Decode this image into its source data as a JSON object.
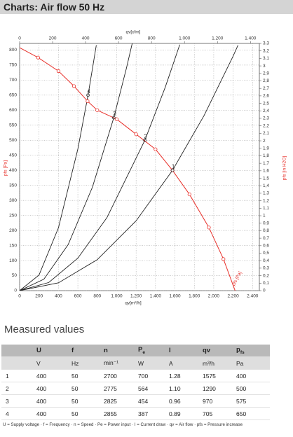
{
  "header": {
    "title": "Charts: Air flow 50 Hz"
  },
  "chart_data": {
    "type": "line",
    "xlabel": "qv[m³/h]",
    "x2label": "qv[cfm]",
    "ylabel": "pfs [Pa]",
    "y2label": "pfs [in H2O]",
    "curve_label": "pfs [Pa]",
    "xlim": [
      0,
      2470
    ],
    "x2lim": [
      0,
      1454
    ],
    "ylim": [
      0,
      822
    ],
    "y2lim": [
      0,
      3.3
    ],
    "grid": true,
    "xticks": [
      0,
      200,
      400,
      600,
      800,
      {
        "value": 1000,
        "label": "1.000"
      },
      {
        "value": 1200,
        "label": "1.200"
      },
      {
        "value": 1400,
        "label": "1.400"
      },
      {
        "value": 1600,
        "label": "1.600"
      },
      {
        "value": 1800,
        "label": "1.800"
      },
      {
        "value": 2000,
        "label": "2.000"
      },
      {
        "value": 2200,
        "label": "2.200"
      },
      {
        "value": 2400,
        "label": "2.400"
      }
    ],
    "x2ticks": [
      0,
      200,
      400,
      600,
      800,
      {
        "value": 1000,
        "label": "1.000"
      },
      {
        "value": 1200,
        "label": "1.200"
      },
      {
        "value": 1400,
        "label": "1.400"
      }
    ],
    "yticks": [
      0,
      50,
      100,
      150,
      200,
      250,
      300,
      350,
      400,
      450,
      500,
      550,
      600,
      650,
      700,
      750,
      800
    ],
    "y2ticks": [
      0,
      {
        "value": 0.1,
        "label": "0,1"
      },
      {
        "value": 0.2,
        "label": "0,2"
      },
      {
        "value": 0.3,
        "label": "0,3"
      },
      {
        "value": 0.4,
        "label": "0,4"
      },
      {
        "value": 0.5,
        "label": "0,5"
      },
      {
        "value": 0.6,
        "label": "0,6"
      },
      {
        "value": 0.7,
        "label": "0,7"
      },
      {
        "value": 0.8,
        "label": "0,8"
      },
      {
        "value": 0.9,
        "label": "0,9"
      },
      1,
      {
        "value": 1.1,
        "label": "1,1"
      },
      {
        "value": 1.2,
        "label": "1,2"
      },
      {
        "value": 1.3,
        "label": "1,3"
      },
      {
        "value": 1.4,
        "label": "1,4"
      },
      {
        "value": 1.5,
        "label": "1,5"
      },
      {
        "value": 1.6,
        "label": "1,6"
      },
      {
        "value": 1.7,
        "label": "1,7"
      },
      {
        "value": 1.8,
        "label": "1,8"
      },
      {
        "value": 1.9,
        "label": "1,9"
      },
      2,
      {
        "value": 2.1,
        "label": "2,1"
      },
      {
        "value": 2.2,
        "label": "2,2"
      },
      {
        "value": 2.3,
        "label": "2,3"
      },
      {
        "value": 2.4,
        "label": "2,4"
      },
      {
        "value": 2.5,
        "label": "2,5"
      },
      {
        "value": 2.6,
        "label": "2,6"
      },
      {
        "value": 2.7,
        "label": "2,7"
      },
      {
        "value": 2.8,
        "label": "2,8"
      },
      {
        "value": 2.9,
        "label": "2,9"
      },
      3,
      {
        "value": 3.1,
        "label": "3,1"
      },
      {
        "value": 3.2,
        "label": "3,2"
      },
      {
        "value": 3.3,
        "label": "3,3"
      }
    ],
    "fan_curve": {
      "color": "#e8302a",
      "x": [
        0,
        190,
        400,
        560,
        700,
        800,
        1000,
        1200,
        1400,
        1575,
        1750,
        1950,
        2100,
        2220
      ],
      "values": [
        808,
        775,
        730,
        680,
        630,
        600,
        570,
        520,
        470,
        400,
        320,
        210,
        105,
        0
      ]
    },
    "series": [
      {
        "label": "1",
        "color": "#222222",
        "x": [
          0,
          400,
          800,
          1200,
          1575,
          1900,
          2200,
          2250
        ],
        "values": [
          0,
          26,
          103,
          232,
          400,
          582,
          780,
          816
        ]
      },
      {
        "label": "2",
        "color": "#222222",
        "x": [
          0,
          300,
          600,
          900,
          1290,
          1500,
          1650
        ],
        "values": [
          0,
          27,
          108,
          243,
          500,
          676,
          818
        ]
      },
      {
        "label": "3",
        "color": "#222222",
        "x": [
          0,
          250,
          500,
          750,
          970,
          1100,
          1160
        ],
        "values": [
          0,
          38,
          153,
          344,
          575,
          739,
          822
        ]
      },
      {
        "label": "4",
        "color": "#222222",
        "x": [
          0,
          200,
          400,
          600,
          705,
          790
        ],
        "values": [
          0,
          52,
          209,
          471,
          650,
          816
        ]
      }
    ]
  },
  "section": {
    "title": "Measured values"
  },
  "table": {
    "header": [
      "",
      "U",
      "f",
      "n",
      {
        "text": "P",
        "sub": "e"
      },
      "I",
      "qv",
      {
        "text": "p",
        "sub": "fs"
      }
    ],
    "units": [
      "",
      "V",
      "Hz",
      "min⁻¹",
      "W",
      "A",
      "m³/h",
      "Pa"
    ],
    "rows": [
      [
        "1",
        "400",
        "50",
        "2700",
        "700",
        "1.28",
        "1575",
        "400"
      ],
      [
        "2",
        "400",
        "50",
        "2775",
        "564",
        "1.10",
        "1290",
        "500"
      ],
      [
        "3",
        "400",
        "50",
        "2825",
        "454",
        "0.96",
        "970",
        "575"
      ],
      [
        "4",
        "400",
        "50",
        "2855",
        "387",
        "0.89",
        "705",
        "650"
      ]
    ]
  },
  "footnote": "U = Supply voltage · f = Frequency · n = Speed · Pe = Power input · I = Current draw · qv = Air flow · pfs = Pressure increase"
}
